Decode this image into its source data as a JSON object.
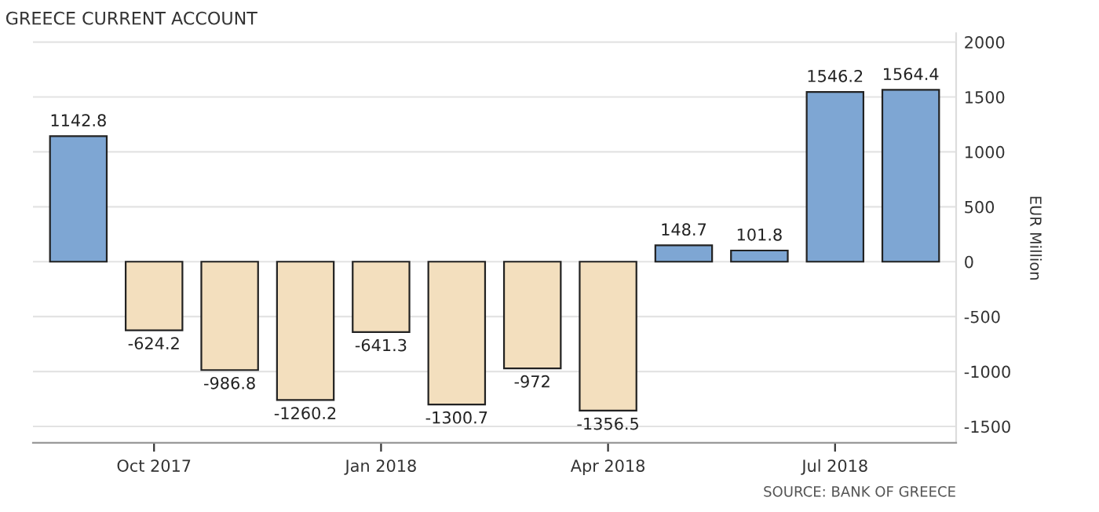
{
  "chart_data": {
    "type": "bar",
    "title": "GREECE CURRENT ACCOUNT",
    "ylabel": "EUR Million",
    "categories": [
      null,
      "Oct 2017",
      null,
      null,
      "Jan 2018",
      null,
      null,
      "Apr 2018",
      null,
      null,
      "Jul 2018",
      null
    ],
    "values": [
      1142.8,
      -624.2,
      -986.8,
      -1260.2,
      -641.3,
      -1300.7,
      -972,
      -1356.5,
      148.7,
      101.8,
      1546.2,
      1564.4
    ],
    "colors": [
      "#7ea6d3",
      "#f3dfbe",
      "#f3dfbe",
      "#f3dfbe",
      "#f3dfbe",
      "#f3dfbe",
      "#f3dfbe",
      "#f3dfbe",
      "#7ea6d3",
      "#7ea6d3",
      "#7ea6d3",
      "#7ea6d3"
    ],
    "ylim": [
      -1650,
      2080
    ],
    "yticks": [
      -1500,
      -1000,
      -500,
      0,
      500,
      1000,
      1500,
      2000
    ],
    "grid": "y",
    "data_labels": true,
    "annotations": [
      "SOURCE: BANK OF GREECE"
    ]
  }
}
